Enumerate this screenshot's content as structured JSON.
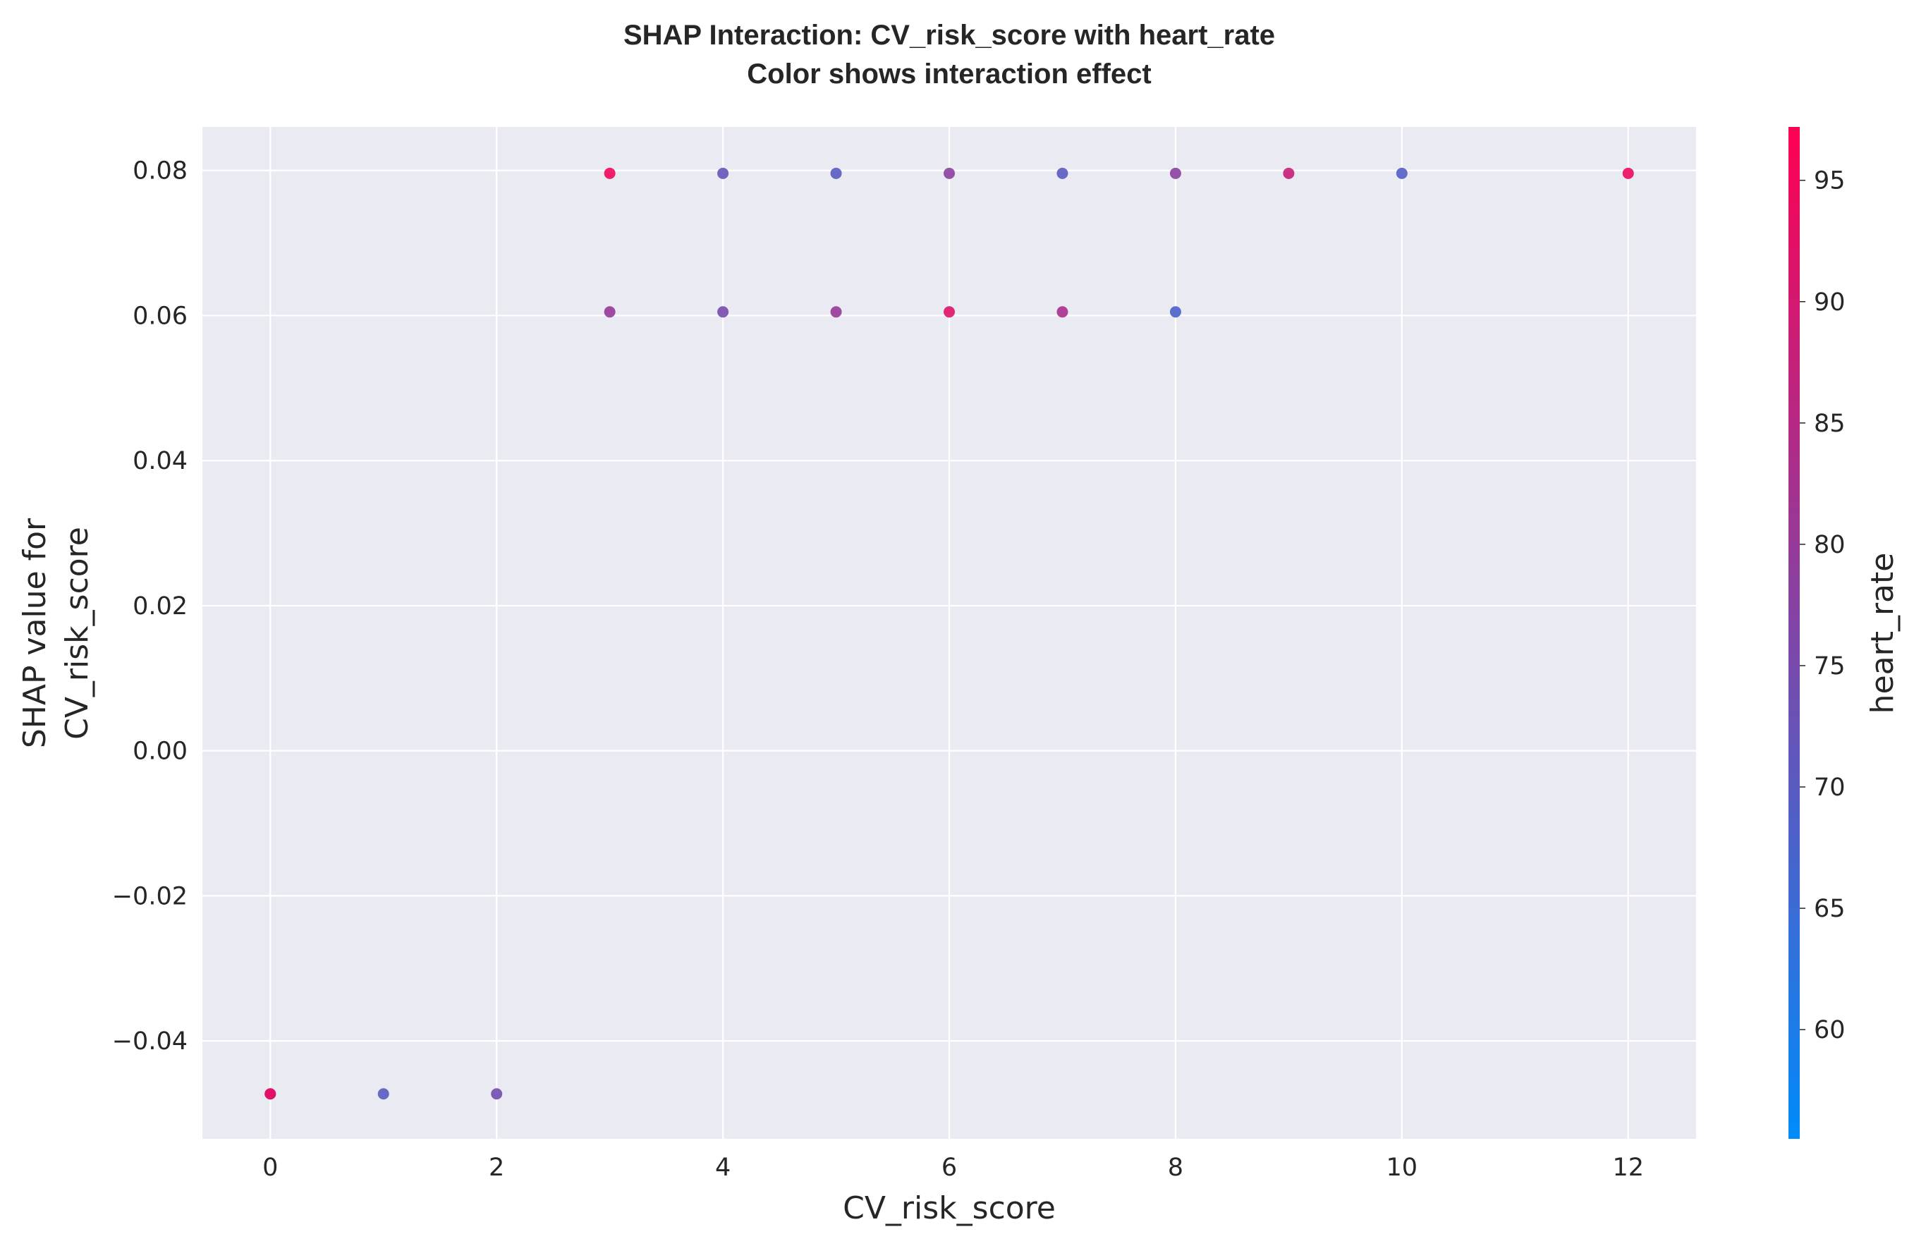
{
  "chart_data": {
    "type": "scatter",
    "title_lines": [
      "SHAP Interaction: CV_risk_score with heart_rate",
      "Color shows interaction effect"
    ],
    "xlabel": "CV_risk_score",
    "ylabel_lines": [
      "SHAP value for",
      "CV_risk_score"
    ],
    "xlim": [
      -0.6,
      12.6
    ],
    "ylim": [
      -0.0535,
      0.086
    ],
    "xticks": [
      0,
      2,
      4,
      6,
      8,
      10,
      12
    ],
    "xtick_labels": [
      "0",
      "2",
      "4",
      "6",
      "8",
      "10",
      "12"
    ],
    "yticks": [
      -0.04,
      -0.02,
      0.0,
      0.02,
      0.04,
      0.06,
      0.08
    ],
    "ytick_labels": [
      "−0.04",
      "−0.02",
      "0.00",
      "0.02",
      "0.04",
      "0.06",
      "0.08"
    ],
    "grid": true,
    "colorbar": {
      "label": "heart_rate",
      "range": [
        55.5,
        97.2
      ],
      "ticks": [
        60,
        65,
        70,
        75,
        80,
        85,
        90,
        95
      ],
      "tick_labels": [
        "60",
        "65",
        "70",
        "75",
        "80",
        "85",
        "90",
        "95"
      ],
      "colormap_stops": [
        "#008bfb",
        "#ff0052"
      ]
    },
    "points": [
      {
        "x": 0,
        "y": -0.0473,
        "c": 95
      },
      {
        "x": 0,
        "y": -0.0473,
        "c": 92
      },
      {
        "x": 1,
        "y": -0.0473,
        "c": 70
      },
      {
        "x": 2,
        "y": -0.0473,
        "c": 74
      },
      {
        "x": 3,
        "y": 0.0605,
        "c": 80
      },
      {
        "x": 3,
        "y": 0.0796,
        "c": 95
      },
      {
        "x": 4,
        "y": 0.0605,
        "c": 75
      },
      {
        "x": 4,
        "y": 0.0796,
        "c": 72
      },
      {
        "x": 5,
        "y": 0.0605,
        "c": 80
      },
      {
        "x": 5,
        "y": 0.0796,
        "c": 70
      },
      {
        "x": 6,
        "y": 0.0605,
        "c": 92
      },
      {
        "x": 6,
        "y": 0.0796,
        "c": 78
      },
      {
        "x": 7,
        "y": 0.0605,
        "c": 83
      },
      {
        "x": 7,
        "y": 0.0796,
        "c": 70
      },
      {
        "x": 8,
        "y": 0.0605,
        "c": 68
      },
      {
        "x": 8,
        "y": 0.0796,
        "c": 78
      },
      {
        "x": 9,
        "y": 0.0796,
        "c": 88
      },
      {
        "x": 10,
        "y": 0.0796,
        "c": 69
      },
      {
        "x": 12,
        "y": 0.0796,
        "c": 94
      }
    ]
  }
}
